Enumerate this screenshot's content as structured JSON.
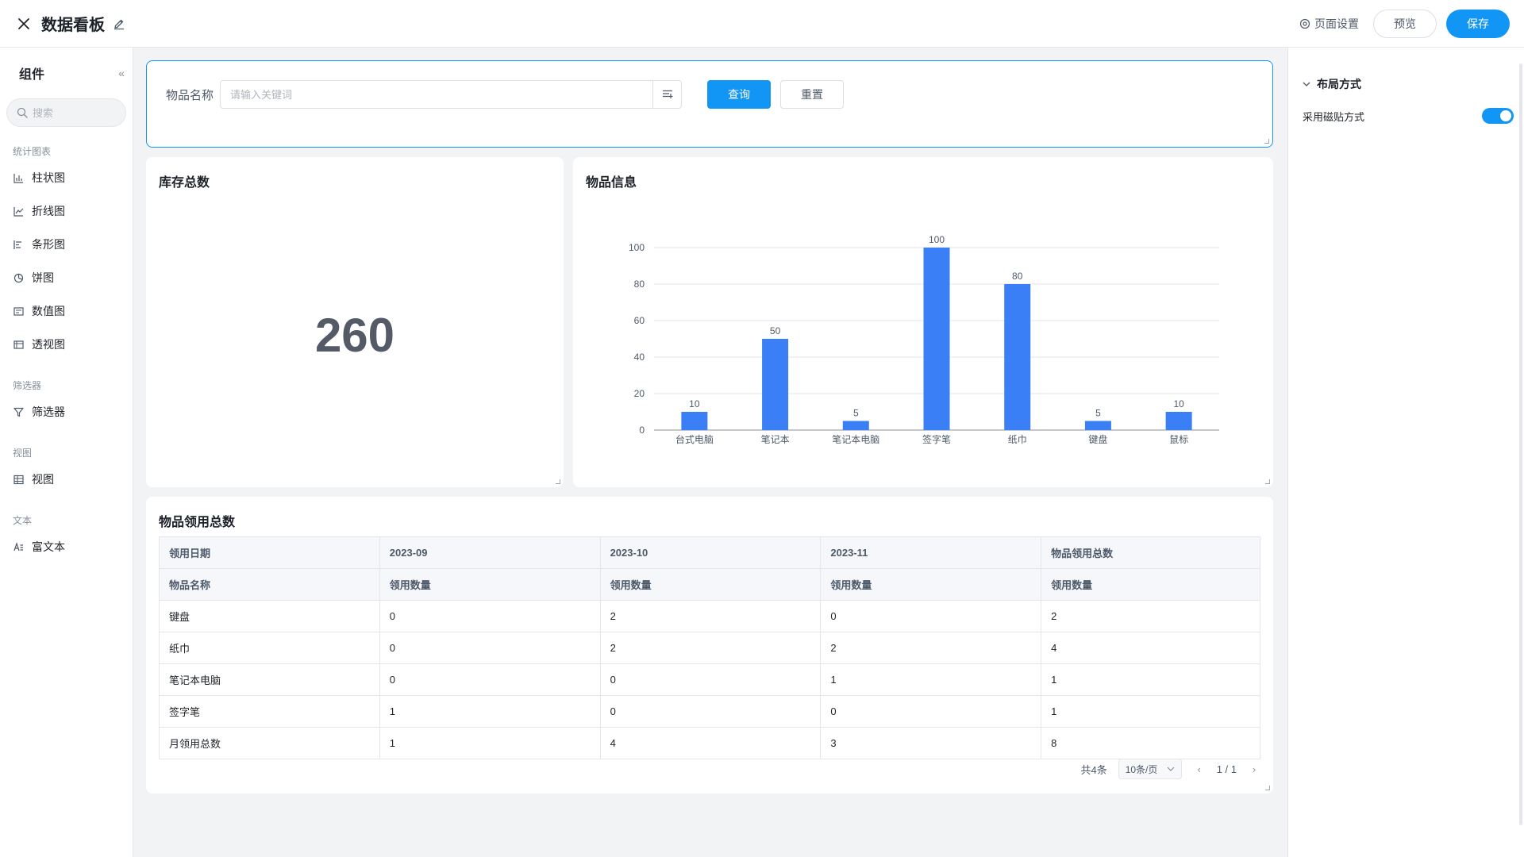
{
  "header": {
    "title": "数据看板",
    "page_settings": "页面设置",
    "preview": "预览",
    "save": "保存"
  },
  "sidebar": {
    "title": "组件",
    "search_placeholder": "搜索",
    "groups": [
      {
        "label": "统计图表",
        "items": [
          "柱状图",
          "折线图",
          "条形图",
          "饼图",
          "数值图",
          "透视图"
        ]
      },
      {
        "label": "筛选器",
        "items": [
          "筛选器"
        ]
      },
      {
        "label": "视图",
        "items": [
          "视图"
        ]
      },
      {
        "label": "文本",
        "items": [
          "富文本"
        ]
      }
    ]
  },
  "filter": {
    "label": "物品名称",
    "placeholder": "请输入关键词",
    "value": "",
    "query": "查询",
    "reset": "重置"
  },
  "stock": {
    "title": "库存总数",
    "value": "260"
  },
  "chart_data": {
    "type": "bar",
    "title": "物品信息",
    "categories": [
      "台式电脑",
      "笔记本",
      "笔记本电脑",
      "签字笔",
      "纸巾",
      "键盘",
      "鼠标"
    ],
    "values": [
      10,
      50,
      5,
      100,
      80,
      5,
      10
    ],
    "yticks": [
      "0",
      "20",
      "40",
      "60",
      "80",
      "100"
    ],
    "ylim": [
      0,
      100
    ],
    "grid": true,
    "data_labels": true,
    "color": "#3a7ff6"
  },
  "usage_table": {
    "title": "物品领用总数",
    "header_row1": [
      "领用日期",
      "2023-09",
      "2023-10",
      "2023-11",
      "物品领用总数"
    ],
    "header_row2": [
      "物品名称",
      "领用数量",
      "领用数量",
      "领用数量",
      "领用数量"
    ],
    "rows": [
      [
        "键盘",
        "0",
        "2",
        "0",
        "2"
      ],
      [
        "纸巾",
        "0",
        "2",
        "2",
        "4"
      ],
      [
        "笔记本电脑",
        "0",
        "0",
        "1",
        "1"
      ],
      [
        "签字笔",
        "1",
        "0",
        "0",
        "1"
      ],
      [
        "月领用总数",
        "1",
        "4",
        "3",
        "8"
      ]
    ],
    "pager": {
      "total": "共4条",
      "page_size": "10条/页",
      "page": "1 / 1"
    }
  },
  "right_panel": {
    "section": "布局方式",
    "magnet_label": "采用磁贴方式",
    "magnet_on": true
  },
  "colors": {
    "primary": "#1296f5",
    "bar": "#3a7ff6"
  }
}
